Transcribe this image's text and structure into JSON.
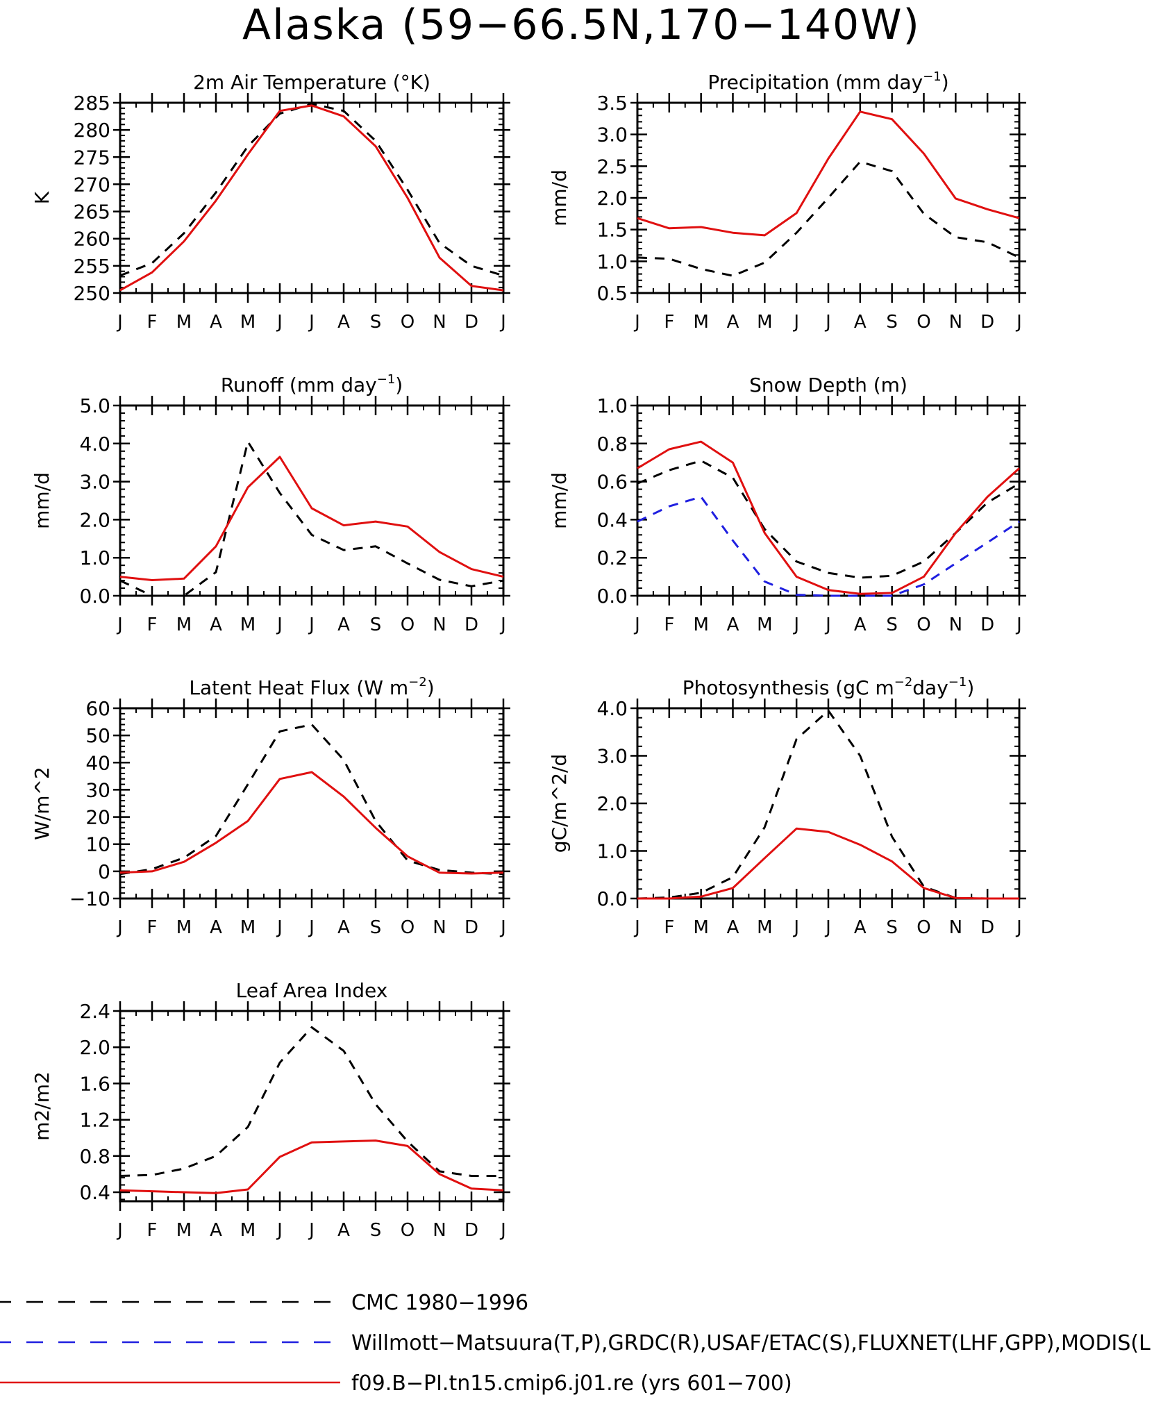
{
  "title": "Alaska (59−66.5N,170−140W)",
  "months": [
    "J",
    "F",
    "M",
    "A",
    "M",
    "J",
    "J",
    "A",
    "S",
    "O",
    "N",
    "D",
    "J"
  ],
  "colors": {
    "cmc": "#000000",
    "obs": "#1f1fe0",
    "model": "#e01010"
  },
  "chart_data": [
    {
      "id": "t2m",
      "type": "line",
      "title": "2m Air Temperature (°K)",
      "ylabel": "K",
      "ylim": [
        250,
        285
      ],
      "yticks": [
        250,
        255,
        260,
        265,
        270,
        275,
        280,
        285
      ],
      "yticklabels": [
        "250",
        "255",
        "260",
        "265",
        "270",
        "275",
        "280",
        "285"
      ],
      "series": [
        {
          "key": "cmc",
          "values": [
            253.2,
            255.5,
            261.0,
            268.5,
            277.0,
            283.0,
            284.8,
            283.5,
            278.0,
            269.0,
            259.2,
            255.0,
            253.2
          ]
        },
        {
          "key": "model",
          "values": [
            250.5,
            253.8,
            259.5,
            267.0,
            275.5,
            283.5,
            284.5,
            282.5,
            277.0,
            267.5,
            256.5,
            251.3,
            250.5
          ]
        }
      ]
    },
    {
      "id": "precip",
      "type": "line",
      "title": "Precipitation (mm day",
      "title_sup": "−1",
      "title_end": ")",
      "ylabel": "mm/d",
      "ylim": [
        0.5,
        3.5
      ],
      "yticks": [
        0.5,
        1.0,
        1.5,
        2.0,
        2.5,
        3.0,
        3.5
      ],
      "yticklabels": [
        "0.5",
        "1.0",
        "1.5",
        "2.0",
        "2.5",
        "3.0",
        "3.5"
      ],
      "series": [
        {
          "key": "cmc",
          "values": [
            1.06,
            1.04,
            0.88,
            0.77,
            0.98,
            1.45,
            2.0,
            2.57,
            2.42,
            1.75,
            1.38,
            1.3,
            1.06
          ]
        },
        {
          "key": "model",
          "values": [
            1.68,
            1.52,
            1.54,
            1.45,
            1.41,
            1.76,
            2.62,
            3.36,
            3.24,
            2.7,
            1.99,
            1.82,
            1.68
          ]
        }
      ]
    },
    {
      "id": "runoff",
      "type": "line",
      "title": "Runoff (mm day",
      "title_sup": "−1",
      "title_end": ")",
      "ylabel": "mm/d",
      "ylim": [
        0,
        5
      ],
      "yticks": [
        0,
        1,
        2,
        3,
        4,
        5
      ],
      "yticklabels": [
        "0.0",
        "1.0",
        "2.0",
        "3.0",
        "4.0",
        "5.0"
      ],
      "series": [
        {
          "key": "cmc",
          "values": [
            0.4,
            0.0,
            0.0,
            0.62,
            4.05,
            2.7,
            1.6,
            1.2,
            1.3,
            0.85,
            0.42,
            0.25,
            0.4
          ]
        },
        {
          "key": "model",
          "values": [
            0.5,
            0.41,
            0.45,
            1.3,
            2.85,
            3.65,
            2.3,
            1.85,
            1.95,
            1.82,
            1.15,
            0.7,
            0.5
          ]
        }
      ]
    },
    {
      "id": "snow",
      "type": "line",
      "title": "Snow Depth (m)",
      "ylabel": "mm/d",
      "ylim": [
        0,
        1
      ],
      "yticks": [
        0,
        0.2,
        0.4,
        0.6,
        0.8,
        1.0
      ],
      "yticklabels": [
        "0.0",
        "0.2",
        "0.4",
        "0.6",
        "0.8",
        "1.0"
      ],
      "series": [
        {
          "key": "cmc",
          "values": [
            0.59,
            0.66,
            0.71,
            0.62,
            0.35,
            0.18,
            0.12,
            0.095,
            0.105,
            0.18,
            0.33,
            0.49,
            0.59
          ]
        },
        {
          "key": "obs",
          "values": [
            0.39,
            0.47,
            0.52,
            0.29,
            0.075,
            0.005,
            0.0,
            0.0,
            0.0,
            0.06,
            0.17,
            0.28,
            0.39
          ]
        },
        {
          "key": "model",
          "values": [
            0.67,
            0.77,
            0.81,
            0.7,
            0.33,
            0.1,
            0.03,
            0.01,
            0.015,
            0.1,
            0.33,
            0.52,
            0.67
          ]
        }
      ]
    },
    {
      "id": "lhf",
      "type": "line",
      "title": "Latent Heat Flux (W m",
      "title_sup": "−2",
      "title_end": ")",
      "ylabel": "W/m^2",
      "ylim": [
        -10,
        60
      ],
      "yticks": [
        -10,
        0,
        10,
        20,
        30,
        40,
        50,
        60
      ],
      "yticklabels": [
        "−10",
        "0",
        "10",
        "20",
        "30",
        "40",
        "50",
        "60"
      ],
      "series": [
        {
          "key": "cmc",
          "values": [
            -1.0,
            0.8,
            5.0,
            13.0,
            32.0,
            51.5,
            54.0,
            41.0,
            18.5,
            4.0,
            0.5,
            -0.5,
            -1.0
          ]
        },
        {
          "key": "model",
          "values": [
            -0.5,
            0.0,
            3.5,
            10.5,
            18.5,
            34.0,
            36.5,
            27.5,
            16.0,
            5.5,
            -0.5,
            -0.8,
            -0.5
          ]
        }
      ]
    },
    {
      "id": "gpp",
      "type": "line",
      "title": "Photosynthesis (gC m",
      "title_sup": "−2",
      "title_mid": "day",
      "title_sup2": "−1",
      "title_end": ")",
      "ylabel": "gC/m^2/d",
      "ylim": [
        0,
        4
      ],
      "yticks": [
        0,
        1,
        2,
        3,
        4
      ],
      "yticklabels": [
        "0.0",
        "1.0",
        "2.0",
        "3.0",
        "4.0"
      ],
      "series": [
        {
          "key": "cmc",
          "values": [
            0.0,
            0.02,
            0.12,
            0.45,
            1.5,
            3.35,
            3.95,
            3.0,
            1.3,
            0.25,
            0.01,
            0.0,
            0.0
          ]
        },
        {
          "key": "model",
          "values": [
            0.0,
            0.0,
            0.04,
            0.22,
            0.85,
            1.47,
            1.4,
            1.13,
            0.78,
            0.22,
            0.01,
            0.0,
            0.0
          ]
        }
      ]
    },
    {
      "id": "lai",
      "type": "line",
      "title": "Leaf Area Index",
      "ylabel": "m2/m2",
      "ylim": [
        0.3,
        2.4
      ],
      "yticks": [
        0.4,
        0.8,
        1.2,
        1.6,
        2.0,
        2.4
      ],
      "yticklabels": [
        "0.4",
        "0.8",
        "1.2",
        "1.6",
        "2.0",
        "2.4"
      ],
      "series": [
        {
          "key": "cmc",
          "values": [
            0.58,
            0.59,
            0.66,
            0.8,
            1.12,
            1.83,
            2.22,
            1.96,
            1.37,
            0.96,
            0.63,
            0.58,
            0.58
          ]
        },
        {
          "key": "model",
          "values": [
            0.42,
            0.41,
            0.4,
            0.39,
            0.43,
            0.79,
            0.95,
            0.96,
            0.97,
            0.91,
            0.6,
            0.44,
            0.42
          ]
        }
      ]
    }
  ],
  "legend": [
    {
      "key": "cmc",
      "label": "CMC 1980−1996"
    },
    {
      "key": "obs",
      "label": "Willmott−Matsuura(T,P),GRDC(R),USAF/ETAC(S),FLUXNET(LHF,GPP),MODIS(L"
    },
    {
      "key": "model",
      "label": "f09.B−PI.tn15.cmip6.j01.re (yrs 601−700)"
    }
  ]
}
